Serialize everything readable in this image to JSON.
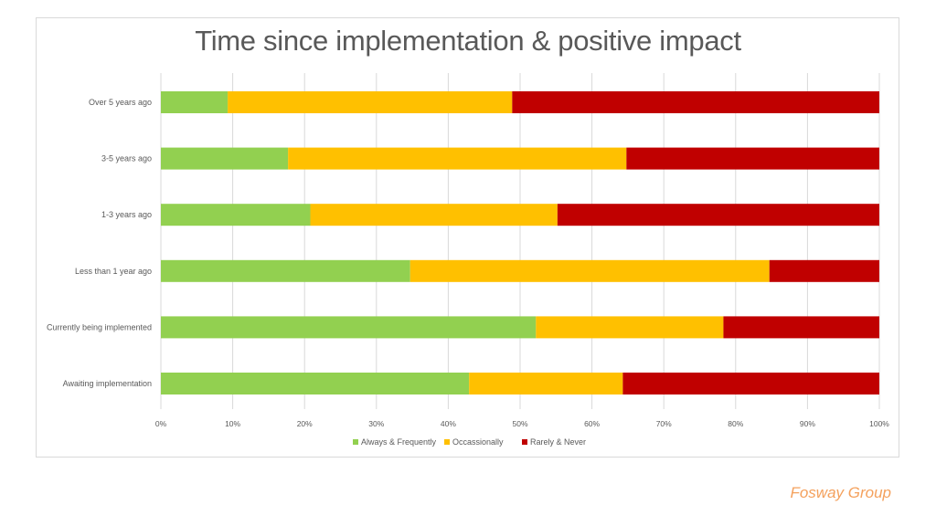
{
  "chart_data": {
    "type": "bar",
    "orientation": "horizontal",
    "stacked": "100%",
    "title": "Time since implementation & positive impact",
    "categories": [
      "Over  5 years ago",
      "3-5 years ago",
      "1-3 years ago",
      "Less than 1 year ago",
      "Currently being implemented",
      "Awaiting implementation"
    ],
    "series": [
      {
        "name": "Always & Frequently",
        "color": "#92d050",
        "values": [
          9.3,
          17.7,
          20.8,
          34.7,
          52.2,
          42.9
        ]
      },
      {
        "name": "Occassionally",
        "color": "#ffc000",
        "values": [
          39.6,
          47.1,
          34.4,
          50.0,
          26.1,
          21.4
        ]
      },
      {
        "name": "Rarely & Never",
        "color": "#c00000",
        "values": [
          51.1,
          35.2,
          44.8,
          15.3,
          21.7,
          35.7
        ]
      }
    ],
    "xaxis": {
      "min": 0,
      "max": 100,
      "ticks": [
        "0%",
        "10%",
        "20%",
        "30%",
        "40%",
        "50%",
        "60%",
        "70%",
        "80%",
        "90%",
        "100%"
      ]
    },
    "grid": "vertical",
    "legend": "bottom"
  },
  "brand": "Fosway Group"
}
